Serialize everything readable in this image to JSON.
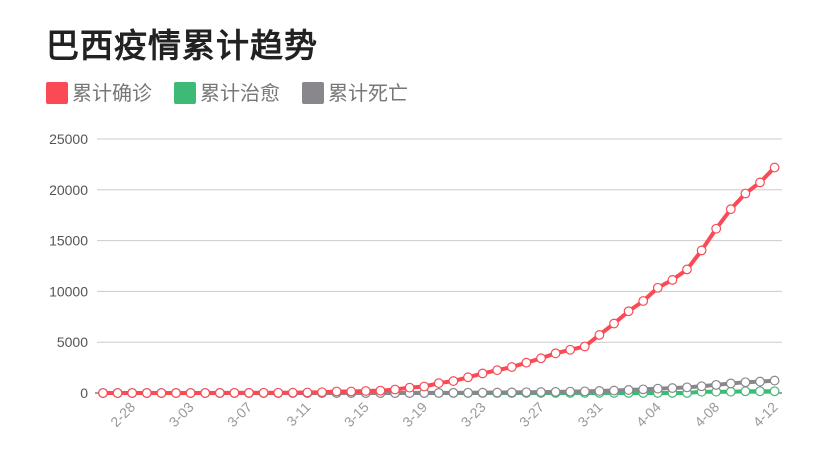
{
  "title": "巴西疫情累计趋势",
  "legend": [
    {
      "label": "累计确诊",
      "color": "#fa4a55"
    },
    {
      "label": "累计治愈",
      "color": "#3dba76"
    },
    {
      "label": "累计死亡",
      "color": "#8a878c"
    }
  ],
  "chart_data": {
    "type": "line",
    "title": "巴西疫情累计趋势",
    "xlabel": "",
    "ylabel": "",
    "ylim": [
      0,
      25000
    ],
    "yticks": [
      0,
      5000,
      10000,
      15000,
      20000,
      25000
    ],
    "xtick_labels": [
      "2-28",
      "3-03",
      "3-07",
      "3-11",
      "3-15",
      "3-19",
      "3-23",
      "3-27",
      "3-31",
      "4-04",
      "4-08",
      "4-12"
    ],
    "grid": "horizontal",
    "legend_position": "top-left",
    "x": [
      "2-26",
      "2-27",
      "2-28",
      "2-29",
      "3-01",
      "3-02",
      "3-03",
      "3-04",
      "3-05",
      "3-06",
      "3-07",
      "3-08",
      "3-09",
      "3-10",
      "3-11",
      "3-12",
      "3-13",
      "3-14",
      "3-15",
      "3-16",
      "3-17",
      "3-18",
      "3-19",
      "3-20",
      "3-21",
      "3-22",
      "3-23",
      "3-24",
      "3-25",
      "3-26",
      "3-27",
      "3-28",
      "3-29",
      "3-30",
      "3-31",
      "4-01",
      "4-02",
      "4-03",
      "4-04",
      "4-05",
      "4-06",
      "4-07",
      "4-08",
      "4-09",
      "4-10",
      "4-11",
      "4-12"
    ],
    "series": [
      {
        "name": "累计确诊",
        "color": "#fa4a55",
        "values": [
          1,
          1,
          1,
          2,
          2,
          2,
          2,
          3,
          8,
          13,
          19,
          25,
          25,
          34,
          52,
          77,
          151,
          151,
          200,
          234,
          346,
          529,
          640,
          970,
          1178,
          1546,
          1924,
          2247,
          2554,
          2985,
          3417,
          3904,
          4256,
          4579,
          5717,
          6836,
          8044,
          9056,
          10360,
          11130,
          12161,
          14034,
          16170,
          18092,
          19638,
          20727,
          22192
        ]
      },
      {
        "name": "累计治愈",
        "color": "#3dba76",
        "values": [
          0,
          0,
          0,
          0,
          0,
          0,
          0,
          0,
          0,
          0,
          0,
          0,
          0,
          0,
          0,
          0,
          0,
          0,
          0,
          0,
          0,
          2,
          2,
          2,
          2,
          2,
          2,
          2,
          2,
          6,
          6,
          6,
          6,
          6,
          6,
          6,
          6,
          6,
          6,
          6,
          6,
          127,
          127,
          127,
          173,
          173,
          173
        ]
      },
      {
        "name": "累计死亡",
        "color": "#8a878c",
        "values": [
          0,
          0,
          0,
          0,
          0,
          0,
          0,
          0,
          0,
          0,
          0,
          0,
          0,
          0,
          0,
          0,
          0,
          0,
          0,
          0,
          1,
          4,
          7,
          11,
          18,
          25,
          34,
          46,
          59,
          77,
          92,
          114,
          136,
          159,
          201,
          241,
          299,
          359,
          431,
          486,
          553,
          667,
          800,
          941,
          1057,
          1124,
          1223
        ]
      }
    ]
  }
}
